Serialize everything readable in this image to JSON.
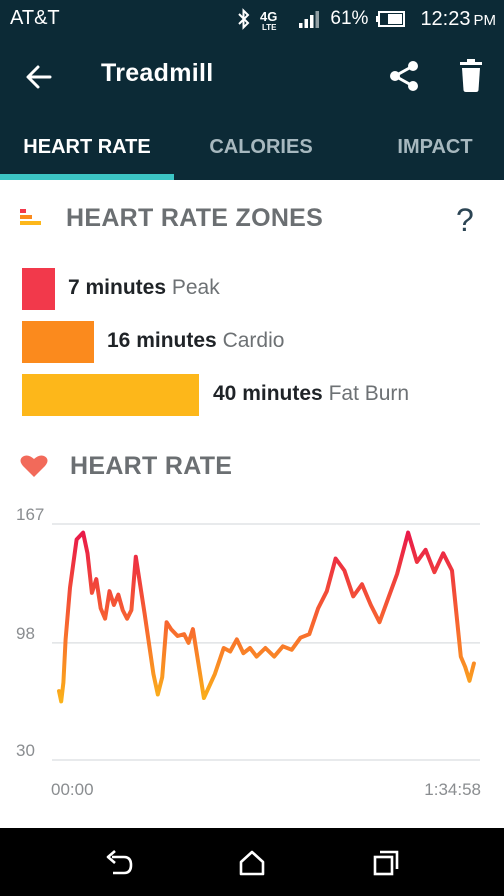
{
  "status_bar": {
    "carrier": "AT&T",
    "network": "4G",
    "network_sub": "LTE",
    "battery": "61%",
    "time": "12:23",
    "ampm": "PM"
  },
  "app_bar": {
    "title": "Treadmill",
    "icons": [
      "back-arrow-icon",
      "share-icon",
      "trash-icon"
    ]
  },
  "tabs": [
    {
      "label": "HEART RATE",
      "active": true
    },
    {
      "label": "CALORIES",
      "active": false
    },
    {
      "label": "IMPACT",
      "active": false
    }
  ],
  "zones": {
    "title": "HEART RATE ZONES",
    "help": "?",
    "items": [
      {
        "minutes": "7 minutes",
        "name": "Peak",
        "value": 7,
        "color": "#f2394b"
      },
      {
        "minutes": "16 minutes",
        "name": "Cardio",
        "value": 16,
        "color": "#fb8a1d"
      },
      {
        "minutes": "40 minutes",
        "name": "Fat Burn",
        "value": 40,
        "color": "#fdb71a"
      }
    ]
  },
  "heart_rate": {
    "title": "HEART RATE"
  },
  "chart_data": {
    "type": "line",
    "title": "",
    "xlabel": "",
    "ylabel": "",
    "x_ticks": [
      "00:00",
      "1:34:58"
    ],
    "y_ticks": [
      167,
      98,
      30
    ],
    "xlim": [
      0,
      94.97
    ],
    "ylim": [
      30,
      167
    ],
    "grid": true,
    "gradient": {
      "high": "#e8144b",
      "low": "#fbbd16"
    },
    "series": [
      {
        "x": [
          0,
          0.5,
          1.0,
          1.5,
          2.5,
          4.0,
          5.5,
          6.5,
          7.5,
          8.5,
          9.5,
          10.5,
          11.5,
          12.5,
          13.5,
          14.5,
          15.5,
          16.5,
          17.5,
          19.5,
          21.5,
          22.5,
          23.5,
          24.5,
          25.5,
          27.0,
          28.5,
          29.5,
          30.5,
          31.5,
          33.0,
          35.5,
          37.5,
          39.0,
          40.5,
          42.0,
          43.5,
          45.0,
          47.0,
          49.0,
          51.0,
          53.0,
          55.0,
          57.0,
          59.0,
          61.0,
          63.0,
          65.0,
          67.0,
          69.0,
          71.0,
          73.0,
          75.0,
          77.0,
          79.5,
          81.5,
          83.5,
          85.5,
          87.5,
          89.5,
          91.5,
          92.5,
          93.5,
          94.5
        ],
        "values": [
          70,
          64,
          75,
          100,
          130,
          158,
          162,
          150,
          127,
          135,
          118,
          112,
          128,
          120,
          126,
          117,
          112,
          117,
          148,
          115,
          80,
          68,
          78,
          110,
          106,
          102,
          103,
          98,
          106,
          90,
          66,
          80,
          95,
          93,
          100,
          92,
          95,
          90,
          95,
          90,
          96,
          94,
          101,
          103,
          118,
          128,
          147,
          140,
          125,
          132,
          120,
          110,
          124,
          138,
          162,
          145,
          152,
          139,
          150,
          140,
          90,
          84,
          76,
          86
        ]
      }
    ]
  }
}
